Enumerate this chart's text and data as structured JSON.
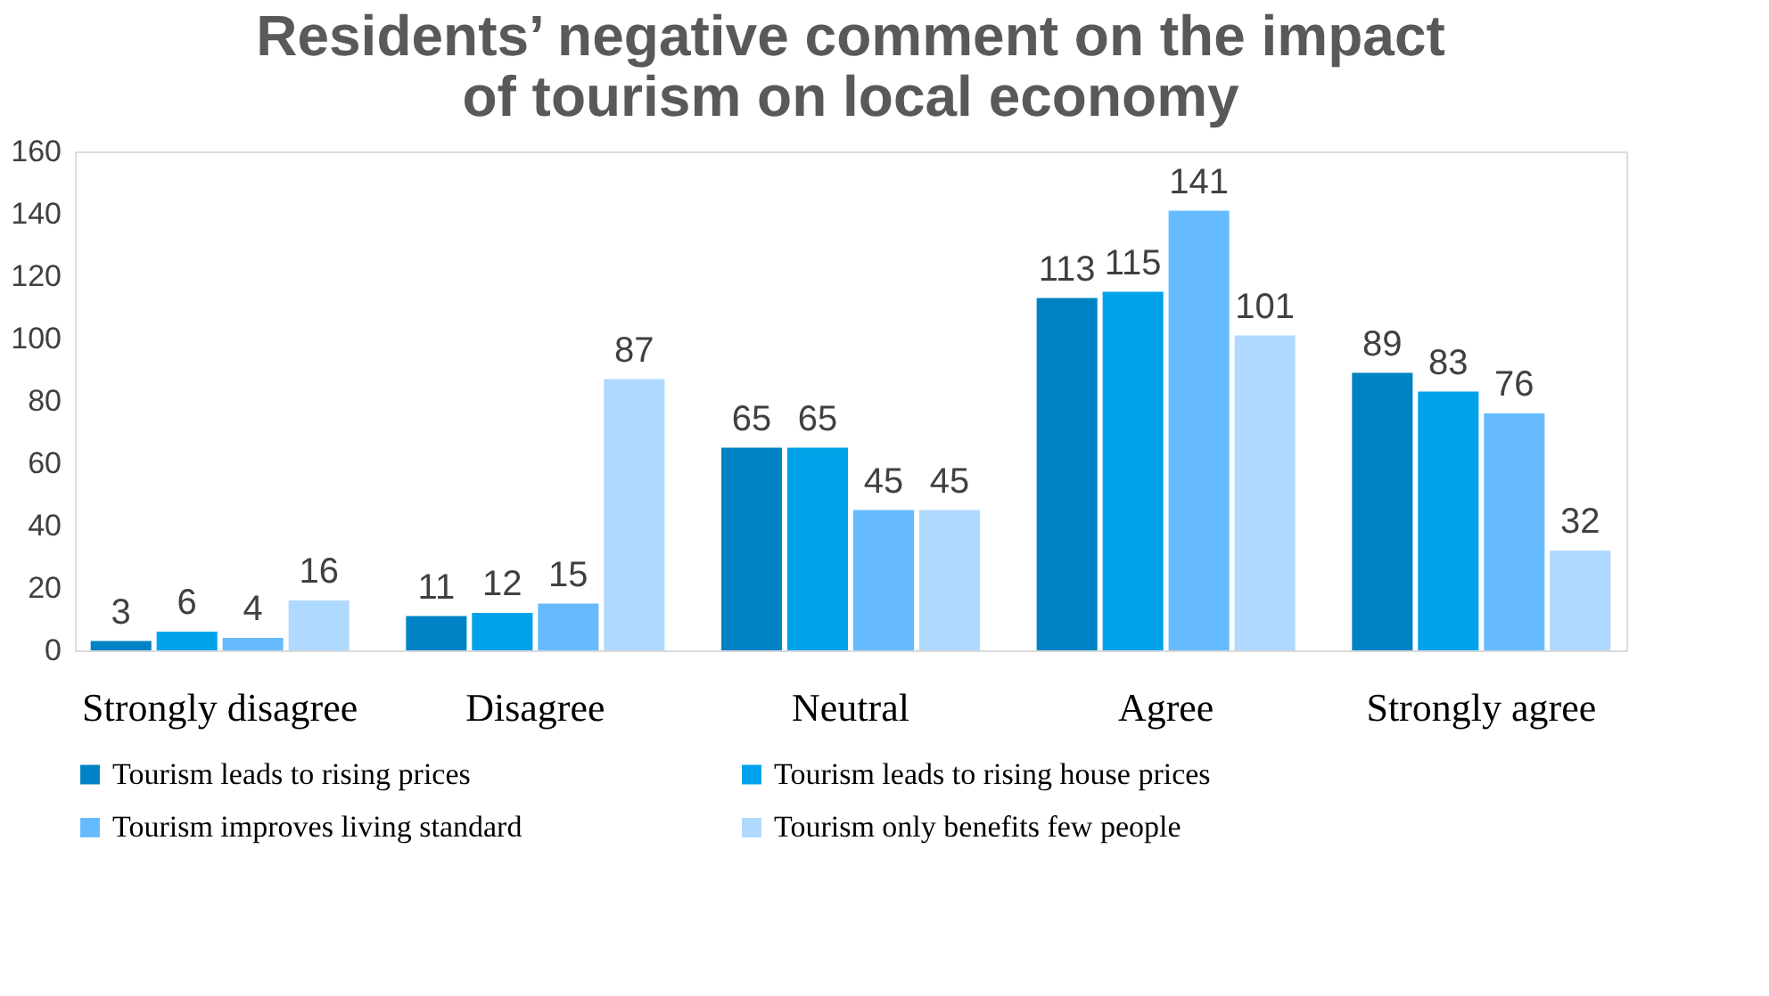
{
  "chart_data": {
    "type": "bar",
    "title": "Residents’ negative comment on the impact of tourism on local economy",
    "categories": [
      "Strongly disagree",
      "Disagree",
      "Neutral",
      "Agree",
      "Strongly agree"
    ],
    "series": [
      {
        "name": "Tourism leads to rising prices",
        "color": "#0083c4",
        "values": [
          3,
          11,
          65,
          113,
          89
        ]
      },
      {
        "name": "Tourism leads to rising house prices",
        "color": "#00a3ea",
        "values": [
          6,
          12,
          65,
          115,
          83
        ]
      },
      {
        "name": "Tourism improves living standard",
        "color": "#66bbff",
        "values": [
          4,
          15,
          45,
          141,
          76
        ]
      },
      {
        "name": "Tourism only benefits few people",
        "color": "#b0d9ff",
        "values": [
          16,
          87,
          45,
          101,
          32
        ]
      }
    ],
    "ylim": [
      0,
      160
    ],
    "yticks": [
      0,
      20,
      40,
      60,
      80,
      100,
      120,
      140,
      160
    ],
    "data_labels": true,
    "grid": false,
    "legend": "bottom"
  }
}
